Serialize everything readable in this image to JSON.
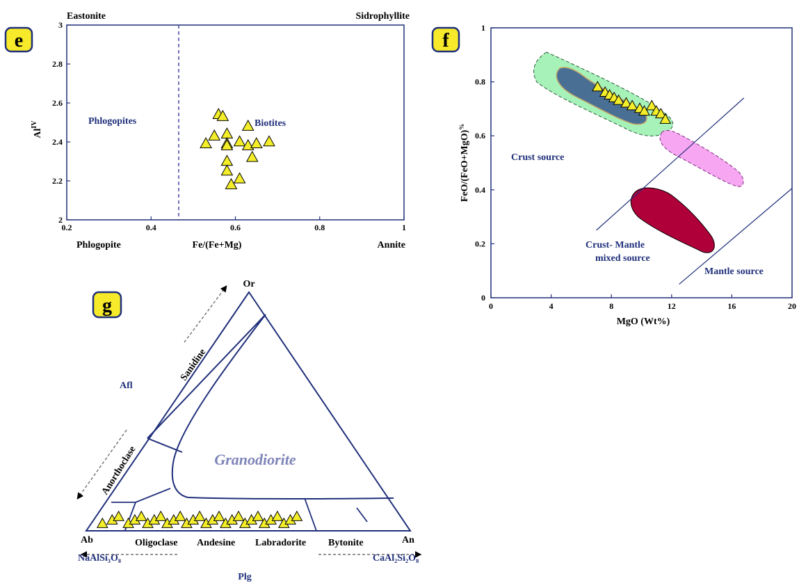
{
  "panels": {
    "e": {
      "badge": "e",
      "corner_labels": {
        "top_left": "Eastonite",
        "top_right": "Sidrophyllite",
        "bottom_left": "Phlogopite",
        "bottom_right": "Annite"
      },
      "field_labels": {
        "left": "Phlogopites",
        "right": "Biotites"
      },
      "xlabel": "Fe/(Fe+Mg)",
      "ylabel": "Al",
      "ylabel_sup": "IV"
    },
    "f": {
      "badge": "f",
      "xlabel": "MgO (Wt%)",
      "ylabel": "FeO/(FeO+MgO)",
      "ylabel_sup": "%",
      "field_labels": {
        "crust": "Crust source",
        "mixed_1": "Crust- Mantle",
        "mixed_2": "mixed source",
        "mantle": "Mantle source"
      }
    },
    "g": {
      "badge": "g",
      "apex_top": "Or",
      "apex_left": "Ab",
      "apex_right": "An",
      "formula_left": "NaAlSi₃O₈",
      "formula_right": "CaAl₂Si₂O₈",
      "side_group_left": "Afl",
      "side_group_bottom": "Plg",
      "field_label": "Granodiorite",
      "edge_labels": {
        "sanidine": "Sanidine",
        "anorthoclase": "Anorthoclase"
      },
      "base_labels": [
        "Oligoclase",
        "Andesine",
        "Labradorite",
        "Bytonite"
      ]
    }
  },
  "chart_data": [
    {
      "type": "scatter",
      "panel": "e",
      "xlabel": "Fe/(Fe+Mg)",
      "ylabel": "AlIV",
      "xlim": [
        0.2,
        1
      ],
      "ylim": [
        2,
        3
      ],
      "x_ticks": [
        "0.2",
        "0.4",
        "0.6",
        "0.8",
        "1"
      ],
      "y_ticks": [
        "2",
        "2.2",
        "2.4",
        "2.6",
        "2.8",
        "3"
      ],
      "divider_x": 0.47,
      "points": [
        {
          "x": 0.56,
          "y": 2.54
        },
        {
          "x": 0.57,
          "y": 2.53
        },
        {
          "x": 0.53,
          "y": 2.39
        },
        {
          "x": 0.55,
          "y": 2.43
        },
        {
          "x": 0.58,
          "y": 2.44
        },
        {
          "x": 0.58,
          "y": 2.39
        },
        {
          "x": 0.58,
          "y": 2.38
        },
        {
          "x": 0.61,
          "y": 2.4
        },
        {
          "x": 0.63,
          "y": 2.48
        },
        {
          "x": 0.63,
          "y": 2.38
        },
        {
          "x": 0.65,
          "y": 2.39
        },
        {
          "x": 0.68,
          "y": 2.4
        },
        {
          "x": 0.64,
          "y": 2.32
        },
        {
          "x": 0.58,
          "y": 2.3
        },
        {
          "x": 0.58,
          "y": 2.25
        },
        {
          "x": 0.61,
          "y": 2.21
        },
        {
          "x": 0.59,
          "y": 2.18
        }
      ]
    },
    {
      "type": "scatter",
      "panel": "f",
      "xlabel": "MgO (Wt%)",
      "ylabel": "FeO/(FeO+MgO)%",
      "xlim": [
        0,
        20
      ],
      "ylim": [
        0,
        1
      ],
      "x_ticks": [
        "0",
        "4",
        "8",
        "12",
        "16",
        "20"
      ],
      "y_ticks": [
        "0",
        "0.2",
        "0.4",
        "0.6",
        "0.8",
        "1"
      ],
      "boundary_lines": [
        {
          "from": [
            7,
            0.25
          ],
          "to": [
            16.8,
            0.74
          ]
        },
        {
          "from": [
            12.5,
            0.05
          ],
          "to": [
            22,
            0.5
          ]
        }
      ],
      "field_colors": [
        "#a6f2b9",
        "#4a6f95",
        "#f7a6f2",
        "#b0003a"
      ],
      "points": [
        {
          "x": 8.1,
          "y": 0.78
        },
        {
          "x": 8.6,
          "y": 0.76
        },
        {
          "x": 8.9,
          "y": 0.75
        },
        {
          "x": 9.2,
          "y": 0.74
        },
        {
          "x": 9.5,
          "y": 0.73
        },
        {
          "x": 10.0,
          "y": 0.72
        },
        {
          "x": 10.4,
          "y": 0.71
        },
        {
          "x": 10.9,
          "y": 0.7
        },
        {
          "x": 11.2,
          "y": 0.69
        },
        {
          "x": 11.7,
          "y": 0.71
        },
        {
          "x": 12.0,
          "y": 0.69
        },
        {
          "x": 12.3,
          "y": 0.68
        },
        {
          "x": 12.6,
          "y": 0.66
        }
      ]
    },
    {
      "type": "ternary",
      "panel": "g",
      "apexes": [
        "Or",
        "Ab",
        "An"
      ],
      "points_anorthite_fraction": [
        0.05,
        0.08,
        0.1,
        0.13,
        0.15,
        0.17,
        0.19,
        0.21,
        0.23,
        0.25,
        0.27,
        0.29,
        0.31,
        0.33,
        0.35,
        0.37,
        0.39,
        0.41,
        0.43,
        0.45,
        0.47,
        0.49,
        0.51,
        0.53,
        0.55,
        0.57,
        0.59,
        0.61,
        0.63,
        0.65
      ]
    }
  ]
}
